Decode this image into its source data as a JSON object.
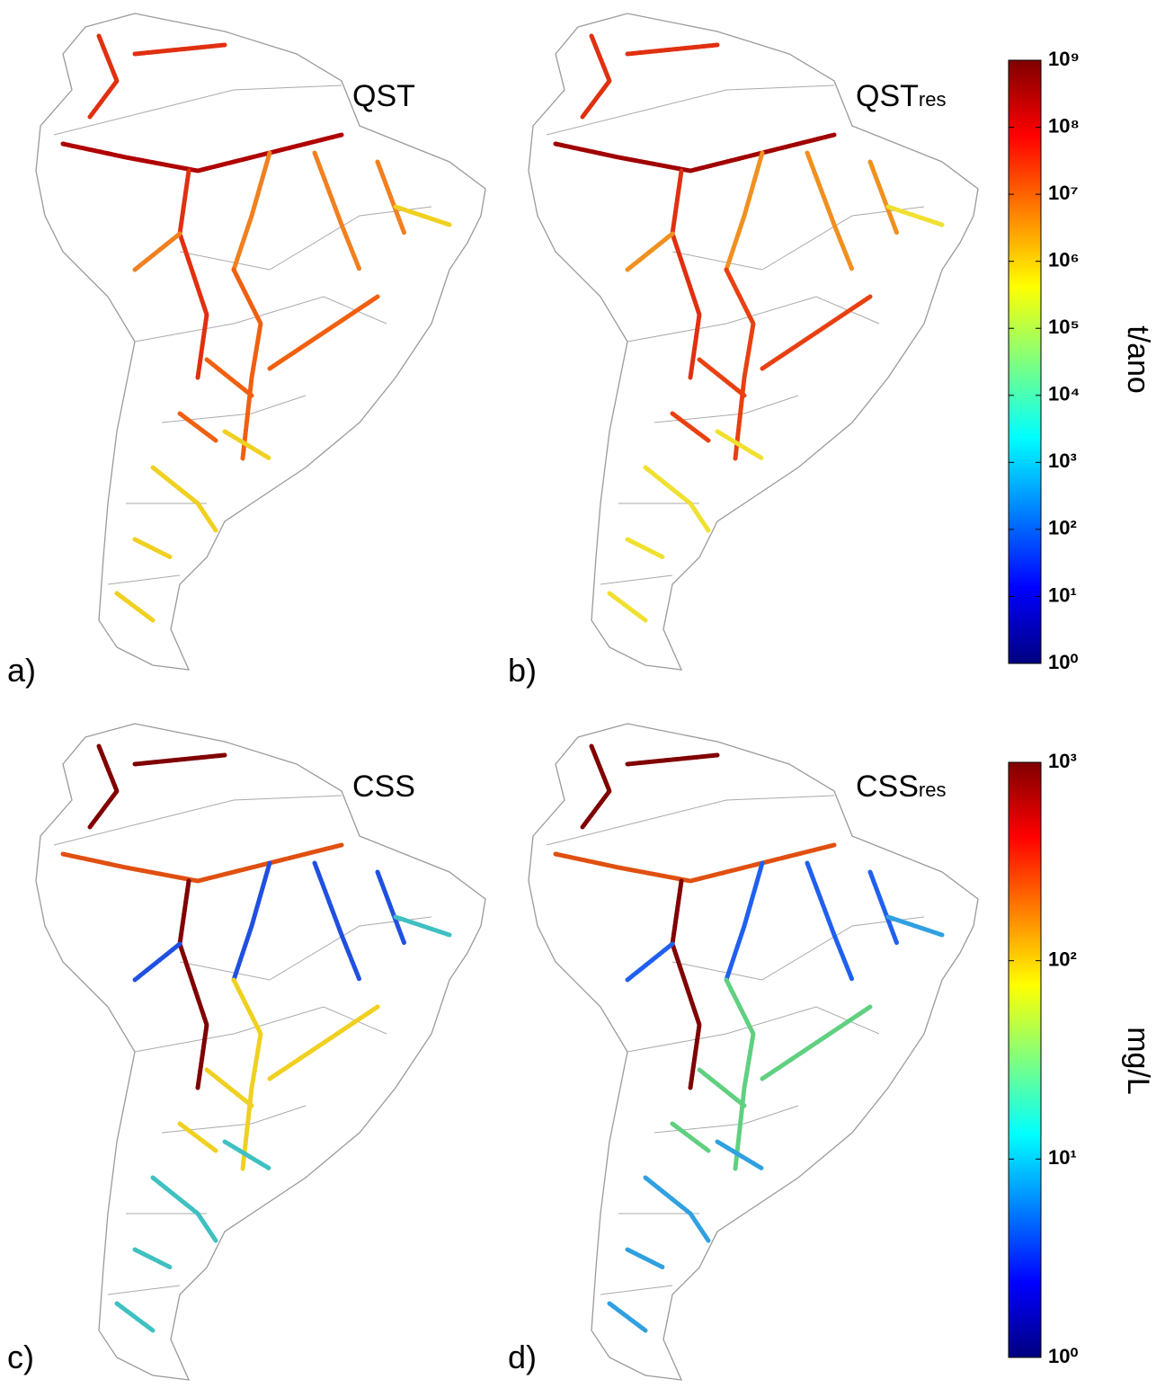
{
  "panels": [
    {
      "label": "a)",
      "title": "QST"
    },
    {
      "label": "b)",
      "title": "QST",
      "title_sub": "res"
    },
    {
      "label": "c)",
      "title": "CSS"
    },
    {
      "label": "d)",
      "title": "CSS",
      "title_sub": "res"
    }
  ],
  "colorbars": [
    {
      "label": "t/ano",
      "log_scale": true,
      "colormap": "jet",
      "lim": [
        1,
        1000000000
      ],
      "ticks": [
        {
          "value": 1,
          "label": "10⁰"
        },
        {
          "value": 10,
          "label": "10¹"
        },
        {
          "value": 100,
          "label": "10²"
        },
        {
          "value": 1000,
          "label": "10³"
        },
        {
          "value": 10000,
          "label": "10⁴"
        },
        {
          "value": 100000,
          "label": "10⁵"
        },
        {
          "value": 1000000,
          "label": "10⁶"
        },
        {
          "value": 10000000,
          "label": "10⁷"
        },
        {
          "value": 100000000,
          "label": "10⁸"
        },
        {
          "value": 1000000000,
          "label": "10⁹"
        }
      ]
    },
    {
      "label": "mg/L",
      "log_scale": true,
      "colormap": "jet",
      "lim": [
        1,
        1000
      ],
      "ticks": [
        {
          "value": 1,
          "label": "10⁰"
        },
        {
          "value": 10,
          "label": "10¹"
        },
        {
          "value": 100,
          "label": "10²"
        },
        {
          "value": 1000,
          "label": "10³"
        }
      ]
    }
  ]
}
